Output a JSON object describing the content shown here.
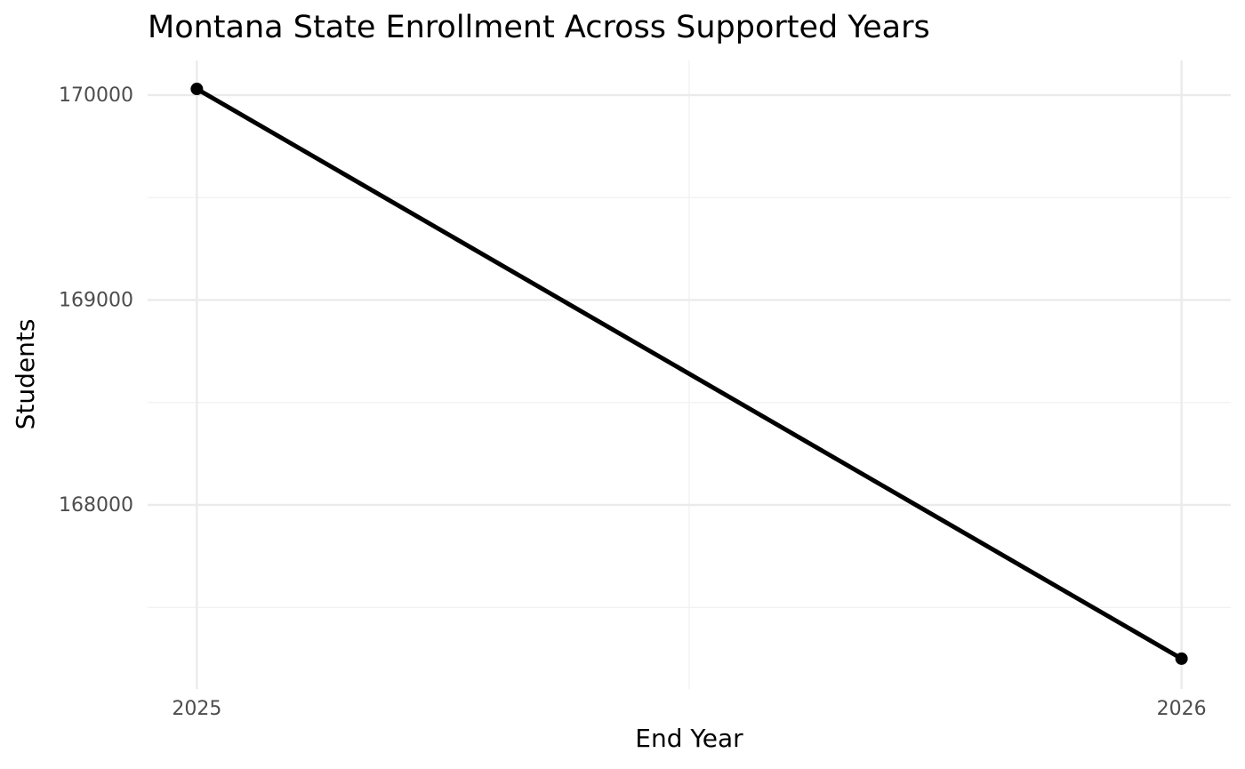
{
  "chart_data": {
    "type": "line",
    "title": "Montana State Enrollment Across Supported Years",
    "x_label": "End Year",
    "y_label": "Students",
    "x": [
      2025,
      2026
    ],
    "series": [
      {
        "name": "Students",
        "color": "#000000",
        "values": [
          170030,
          167250
        ]
      }
    ],
    "xlim": [
      2024.95,
      2026.05
    ],
    "ylim": [
      167102,
      170169
    ],
    "xticks": [
      2025,
      2026
    ],
    "yticks": [
      168000,
      169000,
      170000
    ],
    "x_minor_ticks": [
      2025.5
    ],
    "y_minor_ticks": [
      167500,
      168500,
      169500
    ],
    "grid": true
  }
}
